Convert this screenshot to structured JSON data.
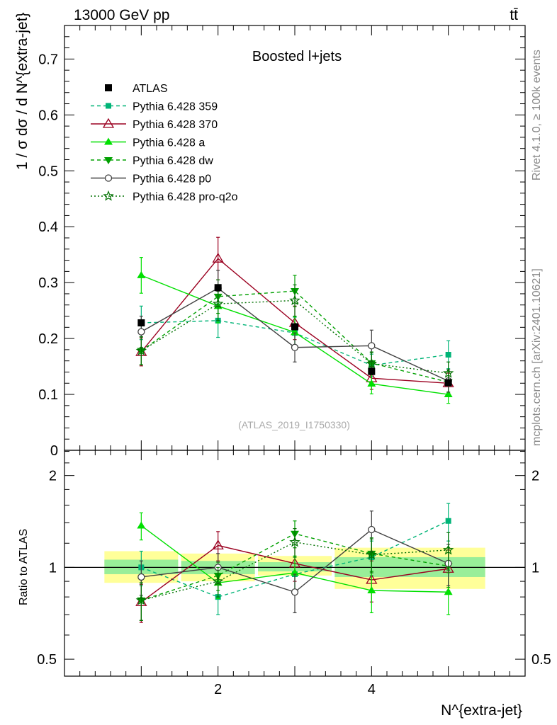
{
  "header": {
    "energy_label": "13000 GeV pp",
    "process_label": "tt̄"
  },
  "side_labels": {
    "rivet": "Rivet 4.1.0, ≥ 100k events",
    "site": "mcplots.cern.ch [arXiv:2401.10621]"
  },
  "chart_data": {
    "type": "line",
    "title": "Boosted l+jets",
    "analysis_tag": "(ATLAS_2019_I1750330)",
    "xlabel": "N^{extra-jet}",
    "ylabel": "1 / σ dσ / d N^{extra-jet}",
    "ratio_ylabel": "Ratio to ATLAS",
    "xlim": [
      0.0,
      6.0
    ],
    "ylim": [
      0.0,
      0.76
    ],
    "ratio_ylim": [
      0.44,
      2.42
    ],
    "x": [
      1,
      2,
      3,
      4,
      5
    ],
    "xticks": [
      {
        "v": 2,
        "label": "2"
      },
      {
        "v": 4,
        "label": "4"
      }
    ],
    "yticks": [
      {
        "v": 0.1,
        "label": "0.1"
      },
      {
        "v": 0.2,
        "label": "0.2"
      },
      {
        "v": 0.3,
        "label": "0.3"
      },
      {
        "v": 0.4,
        "label": "0.4"
      },
      {
        "v": 0.5,
        "label": "0.5"
      },
      {
        "v": 0.6,
        "label": "0.6"
      },
      {
        "v": 0.7,
        "label": "0.7"
      },
      {
        "v": 0.0,
        "label": "0"
      }
    ],
    "ratio_yticks": [
      {
        "v": 0.5,
        "label": "0.5"
      },
      {
        "v": 1,
        "label": "1"
      },
      {
        "v": 2,
        "label": "2"
      }
    ],
    "data": {
      "name": "ATLAS",
      "values": [
        0.228,
        0.291,
        0.221,
        0.141,
        0.121
      ],
      "bins": [
        [
          0.5,
          1.5
        ],
        [
          1.5,
          2.5
        ],
        [
          2.5,
          3.5
        ],
        [
          3.5,
          5.5
        ],
        [
          5.5,
          5.5
        ]
      ],
      "ratio_band_inner": [
        [
          0.95,
          1.06
        ],
        [
          0.95,
          1.05
        ],
        [
          0.97,
          1.04
        ],
        [
          0.93,
          1.08
        ],
        [
          0.93,
          1.08
        ]
      ],
      "ratio_band_outer": [
        [
          0.89,
          1.13
        ],
        [
          0.9,
          1.11
        ],
        [
          0.94,
          1.09
        ],
        [
          0.85,
          1.16
        ],
        [
          0.85,
          1.16
        ]
      ]
    },
    "series": [
      {
        "name": "Pythia 6.428 359",
        "color": "#00b477",
        "dash": "5,4",
        "marker": "square-filled",
        "values": [
          0.228,
          0.232,
          0.21,
          0.152,
          0.171
        ],
        "errors": [
          0.03,
          0.03,
          0.028,
          0.02,
          0.025
        ],
        "ratio": [
          1.0,
          0.8,
          0.95,
          1.08,
          1.42
        ],
        "ratio_err": [
          0.13,
          0.1,
          0.13,
          0.14,
          0.2
        ]
      },
      {
        "name": "Pythia 6.428 370",
        "color": "#9b0020",
        "dash": "",
        "marker": "triangle-open",
        "values": [
          0.176,
          0.343,
          0.228,
          0.129,
          0.12
        ],
        "errors": [
          0.025,
          0.038,
          0.03,
          0.02,
          0.018
        ],
        "ratio": [
          0.77,
          1.18,
          1.03,
          0.91,
          0.99
        ],
        "ratio_err": [
          0.11,
          0.13,
          0.13,
          0.14,
          0.15
        ]
      },
      {
        "name": "Pythia 6.428 a",
        "color": "#00e000",
        "dash": "",
        "marker": "triangle-filled",
        "values": [
          0.313,
          0.258,
          0.211,
          0.119,
          0.1
        ],
        "errors": [
          0.032,
          0.03,
          0.028,
          0.018,
          0.016
        ],
        "ratio": [
          1.37,
          0.89,
          0.96,
          0.84,
          0.83
        ],
        "ratio_err": [
          0.14,
          0.1,
          0.13,
          0.13,
          0.13
        ]
      },
      {
        "name": "Pythia 6.428 dw",
        "color": "#00a000",
        "dash": "5,4",
        "marker": "triangle-down-filled",
        "values": [
          0.178,
          0.275,
          0.285,
          0.156,
          0.122
        ],
        "errors": [
          0.025,
          0.03,
          0.028,
          0.02,
          0.018
        ],
        "ratio": [
          0.78,
          0.94,
          1.29,
          1.11,
          1.01
        ],
        "ratio_err": [
          0.11,
          0.1,
          0.13,
          0.14,
          0.15
        ]
      },
      {
        "name": "Pythia 6.428 p0",
        "color": "#404040",
        "dash": "",
        "marker": "circle-open",
        "values": [
          0.212,
          0.29,
          0.184,
          0.187,
          0.124
        ],
        "errors": [
          0.028,
          0.032,
          0.026,
          0.028,
          0.02
        ],
        "ratio": [
          0.93,
          1.0,
          0.83,
          1.33,
          1.03
        ],
        "ratio_err": [
          0.12,
          0.11,
          0.12,
          0.2,
          0.16
        ]
      },
      {
        "name": "Pythia 6.428 pro-q2o",
        "color": "#007000",
        "dash": "2,3",
        "marker": "star-open",
        "values": [
          0.178,
          0.262,
          0.268,
          0.155,
          0.138
        ],
        "errors": [
          0.025,
          0.03,
          0.028,
          0.02,
          0.02
        ],
        "ratio": [
          0.78,
          0.9,
          1.21,
          1.1,
          1.14
        ],
        "ratio_err": [
          0.11,
          0.1,
          0.13,
          0.14,
          0.16
        ]
      }
    ]
  }
}
